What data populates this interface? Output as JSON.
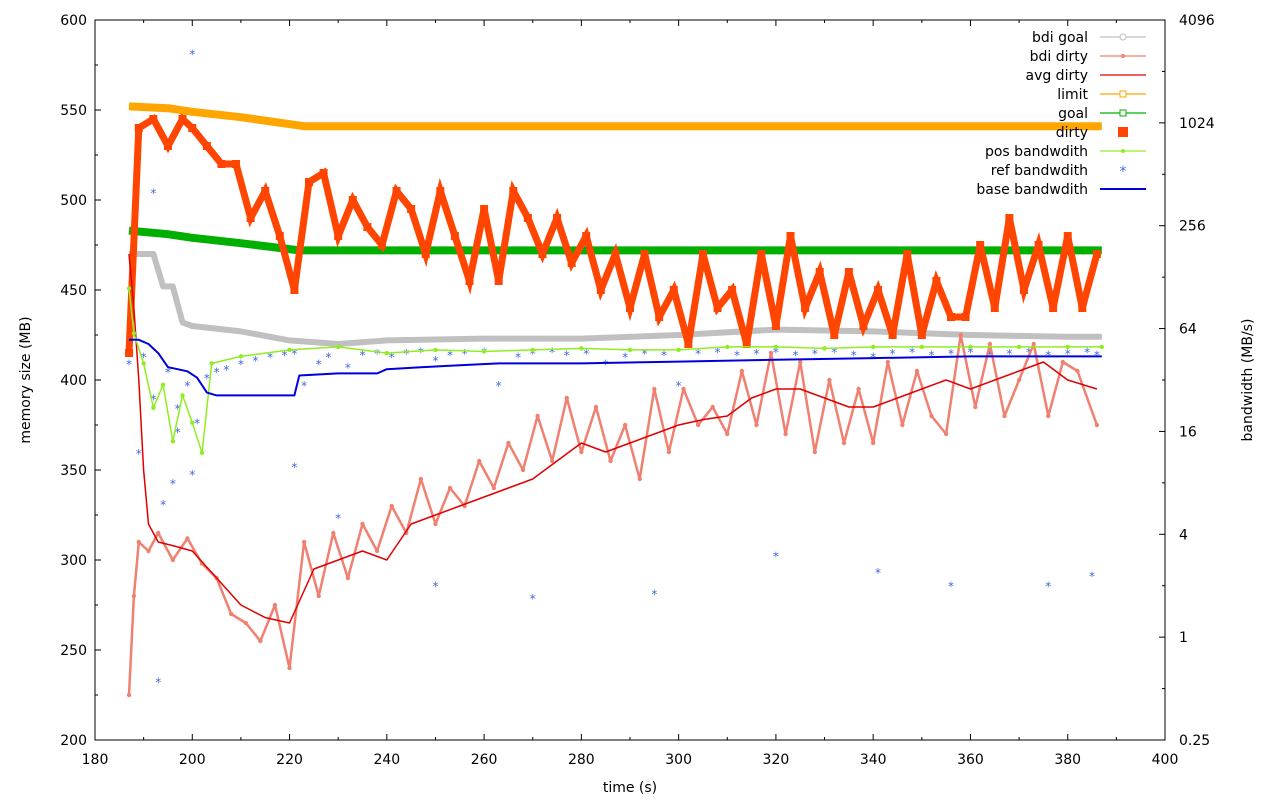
{
  "chart_data": {
    "type": "line",
    "xlabel": "time (s)",
    "ylabel": "memory size (MB)",
    "y2label": "bandwidth (MB/s)",
    "xlim": [
      180,
      400
    ],
    "ylim": [
      200,
      600
    ],
    "y2lim": [
      0.25,
      4096
    ],
    "y2scale": "log2",
    "grid": false,
    "legend_position": "top-right",
    "x_ticks": [
      "180",
      "200",
      "220",
      "240",
      "260",
      "280",
      "300",
      "320",
      "340",
      "360",
      "380",
      "400"
    ],
    "y_ticks": [
      "200",
      "250",
      "300",
      "350",
      "400",
      "450",
      "500",
      "550",
      "600"
    ],
    "y2_ticks": [
      "0.25",
      "1",
      "4",
      "16",
      "64",
      "256",
      "1024",
      "4096"
    ],
    "legend": [
      {
        "name": "bdi goal",
        "color": "#c0c0c0",
        "style": "line-circle"
      },
      {
        "name": "bdi dirty",
        "color": "#f08070",
        "style": "line-dot"
      },
      {
        "name": "avg dirty",
        "color": "#e00000",
        "style": "line"
      },
      {
        "name": "limit",
        "color": "#ffa500",
        "style": "line-square"
      },
      {
        "name": "goal",
        "color": "#00b000",
        "style": "line-square"
      },
      {
        "name": "dirty",
        "color": "#ff4500",
        "style": "square"
      },
      {
        "name": "pos bandwdith",
        "color": "#90ee20",
        "style": "line-dot"
      },
      {
        "name": "ref bandwdith",
        "color": "#4169e1",
        "style": "star"
      },
      {
        "name": "base bandwdith",
        "color": "#0000dd",
        "style": "line"
      }
    ],
    "series": [
      {
        "name": "limit",
        "axis": "y",
        "x": [
          187,
          195,
          200,
          210,
          223,
          240,
          260,
          280,
          300,
          320,
          340,
          360,
          380,
          387
        ],
        "y": [
          552,
          551,
          549,
          546,
          541,
          541,
          541,
          541,
          541,
          541,
          541,
          541,
          541,
          541
        ]
      },
      {
        "name": "goal",
        "axis": "y",
        "x": [
          187,
          195,
          200,
          210,
          222,
          240,
          260,
          280,
          300,
          320,
          340,
          360,
          380,
          387
        ],
        "y": [
          483,
          481,
          479,
          476,
          472,
          472,
          472,
          472,
          472,
          472,
          472,
          472,
          472,
          472
        ]
      },
      {
        "name": "bdi goal",
        "axis": "y",
        "x": [
          187,
          190,
          192,
          194,
          196,
          198,
          200,
          210,
          220,
          230,
          240,
          260,
          280,
          300,
          320,
          340,
          360,
          380,
          387
        ],
        "y": [
          470,
          470,
          470,
          452,
          452,
          432,
          430,
          427,
          422,
          420,
          422,
          423,
          423,
          425,
          428,
          427,
          425,
          424,
          424
        ]
      },
      {
        "name": "dirty",
        "axis": "y",
        "x": [
          187,
          189,
          192,
          195,
          198,
          200,
          203,
          206,
          209,
          212,
          215,
          218,
          221,
          224,
          227,
          230,
          233,
          236,
          239,
          242,
          245,
          248,
          251,
          254,
          257,
          260,
          263,
          266,
          269,
          272,
          275,
          278,
          281,
          284,
          287,
          290,
          293,
          296,
          299,
          302,
          305,
          308,
          311,
          314,
          317,
          320,
          323,
          326,
          329,
          332,
          335,
          338,
          341,
          344,
          347,
          350,
          353,
          356,
          359,
          362,
          365,
          368,
          371,
          374,
          377,
          380,
          383,
          386
        ],
        "y": [
          415,
          540,
          545,
          530,
          545,
          540,
          530,
          520,
          520,
          490,
          505,
          480,
          450,
          510,
          515,
          480,
          500,
          485,
          475,
          505,
          495,
          470,
          505,
          480,
          455,
          495,
          455,
          505,
          490,
          470,
          490,
          465,
          480,
          450,
          470,
          440,
          470,
          435,
          450,
          420,
          470,
          440,
          450,
          420,
          470,
          430,
          480,
          440,
          460,
          425,
          460,
          430,
          450,
          425,
          470,
          425,
          455,
          435,
          435,
          475,
          440,
          490,
          450,
          475,
          440,
          480,
          440,
          470
        ]
      },
      {
        "name": "bdi dirty",
        "axis": "y",
        "x": [
          187,
          188,
          189,
          191,
          193,
          196,
          199,
          202,
          205,
          208,
          211,
          214,
          217,
          220,
          223,
          226,
          229,
          232,
          235,
          238,
          241,
          244,
          247,
          250,
          253,
          256,
          259,
          262,
          265,
          268,
          271,
          274,
          277,
          280,
          283,
          286,
          289,
          292,
          295,
          298,
          301,
          304,
          307,
          310,
          313,
          316,
          319,
          322,
          325,
          328,
          331,
          334,
          337,
          340,
          343,
          346,
          349,
          352,
          355,
          358,
          361,
          364,
          367,
          370,
          373,
          376,
          379,
          382,
          386
        ],
        "y": [
          225,
          280,
          310,
          305,
          315,
          300,
          312,
          298,
          290,
          270,
          265,
          255,
          275,
          240,
          310,
          280,
          315,
          290,
          320,
          305,
          330,
          315,
          345,
          320,
          340,
          330,
          355,
          340,
          365,
          350,
          380,
          355,
          390,
          360,
          385,
          355,
          375,
          345,
          395,
          360,
          395,
          375,
          385,
          370,
          405,
          375,
          415,
          370,
          410,
          360,
          400,
          365,
          395,
          365,
          410,
          375,
          405,
          380,
          370,
          425,
          385,
          420,
          380,
          400,
          420,
          380,
          410,
          405,
          375
        ]
      },
      {
        "name": "avg dirty",
        "axis": "y",
        "x": [
          187,
          188,
          189,
          190,
          191,
          193,
          196,
          200,
          205,
          210,
          215,
          220,
          225,
          230,
          235,
          240,
          245,
          250,
          255,
          260,
          265,
          270,
          275,
          280,
          285,
          290,
          295,
          300,
          305,
          310,
          315,
          320,
          325,
          330,
          335,
          340,
          345,
          350,
          355,
          360,
          365,
          370,
          375,
          380,
          386
        ],
        "y": [
          470,
          440,
          400,
          350,
          320,
          310,
          308,
          305,
          290,
          275,
          268,
          265,
          295,
          300,
          305,
          300,
          320,
          325,
          330,
          335,
          340,
          345,
          355,
          365,
          360,
          365,
          370,
          375,
          378,
          380,
          390,
          395,
          395,
          390,
          385,
          385,
          390,
          395,
          400,
          395,
          400,
          405,
          410,
          400,
          395
        ]
      },
      {
        "name": "pos bandwdith",
        "axis": "y2",
        "x": [
          187,
          188,
          190,
          192,
          194,
          196,
          198,
          200,
          202,
          204,
          210,
          220,
          230,
          240,
          250,
          260,
          270,
          280,
          290,
          300,
          310,
          320,
          330,
          340,
          350,
          360,
          370,
          380,
          387
        ],
        "y": [
          110,
          60,
          40,
          22,
          30,
          14,
          26,
          18,
          12,
          40,
          44,
          48,
          50,
          46,
          48,
          47,
          48,
          49,
          48,
          48,
          50,
          50,
          49,
          50,
          50,
          50,
          50,
          50,
          50
        ]
      },
      {
        "name": "base bandwdith",
        "axis": "y2",
        "x": [
          187,
          189,
          191,
          193,
          195,
          197,
          199,
          201,
          203,
          205,
          210,
          215,
          221,
          222,
          230,
          235,
          238,
          240,
          247,
          255,
          263,
          280,
          300,
          320,
          340,
          360,
          370,
          380,
          387
        ],
        "y": [
          55,
          55,
          52,
          46,
          38,
          37,
          36,
          33,
          27,
          26,
          26,
          26,
          26,
          34,
          35,
          35,
          35,
          37,
          38,
          39,
          40,
          40,
          41,
          42,
          43,
          44,
          44,
          44,
          44
        ]
      },
      {
        "name": "ref bandwdith",
        "axis": "y2",
        "style": "points",
        "x": [
          187,
          189,
          190,
          192,
          194,
          195,
          196,
          197,
          199,
          200,
          201,
          203,
          205,
          207,
          210,
          213,
          216,
          219,
          221,
          223,
          226,
          228,
          232,
          235,
          238,
          241,
          244,
          247,
          250,
          253,
          256,
          260,
          263,
          267,
          270,
          274,
          277,
          281,
          285,
          289,
          293,
          297,
          300,
          304,
          308,
          312,
          316,
          320,
          324,
          328,
          332,
          336,
          340,
          344,
          348,
          352,
          356,
          360,
          364,
          368,
          372,
          376,
          380,
          384,
          386,
          200,
          193,
          192,
          197,
          221,
          230,
          250,
          270,
          295,
          320,
          341,
          356,
          376,
          385
        ],
        "y": [
          40,
          12,
          44,
          25,
          6,
          36,
          8,
          22,
          30,
          9,
          18,
          33,
          36,
          37,
          40,
          42,
          44,
          45,
          46,
          30,
          40,
          44,
          38,
          45,
          46,
          44,
          46,
          47,
          42,
          45,
          46,
          47,
          30,
          44,
          46,
          47,
          45,
          46,
          40,
          44,
          46,
          45,
          30,
          46,
          47,
          45,
          46,
          47,
          45,
          46,
          47,
          45,
          44,
          46,
          47,
          45,
          46,
          47,
          45,
          46,
          47,
          45,
          46,
          47,
          45,
          2600,
          0.55,
          400,
          16,
          10,
          5,
          2,
          1.7,
          1.8,
          3,
          2.4,
          2,
          2,
          2.3
        ]
      }
    ]
  }
}
